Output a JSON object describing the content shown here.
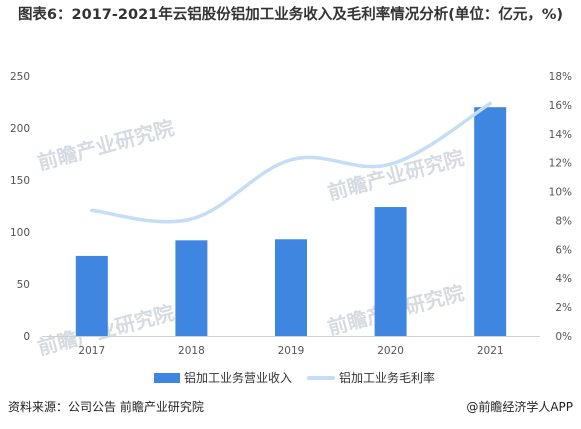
{
  "title": "图表6：2017-2021年云铝股份铝加工业务收入及毛利率情况分析(单位：亿元，%)",
  "colors": {
    "bar": "#3f86e0",
    "line": "#c5ddf5"
  },
  "chart_data": {
    "type": "bar",
    "categories": [
      "2017",
      "2018",
      "2019",
      "2020",
      "2021"
    ],
    "series": [
      {
        "name": "铝加工业务营业收入",
        "type": "bar",
        "axis": "left",
        "values": [
          77,
          92,
          93,
          124,
          220
        ]
      },
      {
        "name": "铝加工业务毛利率",
        "type": "line",
        "axis": "right",
        "values": [
          8.7,
          8.1,
          12.2,
          11.9,
          16.1
        ]
      }
    ],
    "y_left": {
      "range": [
        0,
        250
      ],
      "ticks": [
        "0",
        "50",
        "100",
        "150",
        "200",
        "250"
      ]
    },
    "y_right": {
      "range": [
        0,
        18
      ],
      "ticks": [
        "0%",
        "2%",
        "4%",
        "6%",
        "8%",
        "10%",
        "12%",
        "14%",
        "16%",
        "18%"
      ]
    },
    "grid": false,
    "legend": "bottom"
  },
  "watermark": "前瞻产业研究院",
  "footer": {
    "source": "资料来源：公司公告 前瞻产业研究院",
    "credit": "@前瞻经济学人APP"
  }
}
